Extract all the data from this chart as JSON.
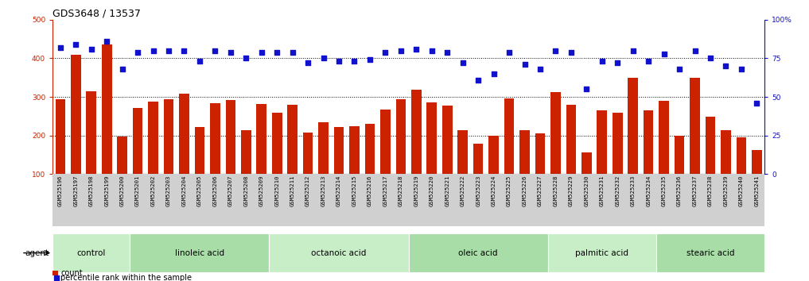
{
  "title": "GDS3648 / 13537",
  "samples": [
    "GSM525196",
    "GSM525197",
    "GSM525198",
    "GSM525199",
    "GSM525200",
    "GSM525201",
    "GSM525202",
    "GSM525203",
    "GSM525204",
    "GSM525205",
    "GSM525206",
    "GSM525207",
    "GSM525208",
    "GSM525209",
    "GSM525210",
    "GSM525211",
    "GSM525212",
    "GSM525213",
    "GSM525214",
    "GSM525215",
    "GSM525216",
    "GSM525217",
    "GSM525218",
    "GSM525219",
    "GSM525220",
    "GSM525221",
    "GSM525222",
    "GSM525223",
    "GSM525224",
    "GSM525225",
    "GSM525226",
    "GSM525227",
    "GSM525228",
    "GSM525229",
    "GSM525230",
    "GSM525231",
    "GSM525232",
    "GSM525233",
    "GSM525234",
    "GSM525235",
    "GSM525236",
    "GSM525237",
    "GSM525238",
    "GSM525239",
    "GSM525240",
    "GSM525241"
  ],
  "counts": [
    295,
    410,
    315,
    435,
    198,
    272,
    288,
    295,
    308,
    222,
    283,
    292,
    213,
    282,
    260,
    280,
    208,
    235,
    222,
    225,
    230,
    268,
    295,
    318,
    285,
    278,
    213,
    180,
    200,
    297,
    215,
    205,
    312,
    280,
    157,
    265,
    260,
    350,
    265,
    290,
    200,
    350,
    248,
    215,
    195,
    163
  ],
  "percentiles": [
    82,
    84,
    81,
    86,
    68,
    79,
    80,
    80,
    80,
    73,
    80,
    79,
    75,
    79,
    79,
    79,
    72,
    75,
    73,
    73,
    74,
    79,
    80,
    81,
    80,
    79,
    72,
    61,
    65,
    79,
    71,
    68,
    80,
    79,
    55,
    73,
    72,
    80,
    73,
    78,
    68,
    80,
    75,
    70,
    68,
    46
  ],
  "groups": [
    {
      "label": "control",
      "start": 0,
      "end": 4
    },
    {
      "label": "linoleic acid",
      "start": 5,
      "end": 13
    },
    {
      "label": "octanoic acid",
      "start": 14,
      "end": 22
    },
    {
      "label": "oleic acid",
      "start": 23,
      "end": 31
    },
    {
      "label": "palmitic acid",
      "start": 32,
      "end": 38
    },
    {
      "label": "stearic acid",
      "start": 39,
      "end": 45
    }
  ],
  "bar_color": "#cc2200",
  "dot_color": "#1111cc",
  "group_bg_color_light": "#c8eec8",
  "group_bg_color_dark": "#a8dda8",
  "xlabels_bg": "#d0d0d0",
  "ylim_left": [
    100,
    500
  ],
  "ylim_right": [
    0,
    100
  ],
  "yticks_left": [
    100,
    200,
    300,
    400,
    500
  ],
  "yticks_right": [
    0,
    25,
    50,
    75,
    100
  ],
  "grid_values": [
    200,
    300,
    400
  ],
  "axis_color_left": "#cc2200",
  "axis_color_right": "#1111cc",
  "bg_color": "#ffffff",
  "title_fontsize": 9,
  "tick_fontsize": 6.5,
  "bar_bottom": 100
}
